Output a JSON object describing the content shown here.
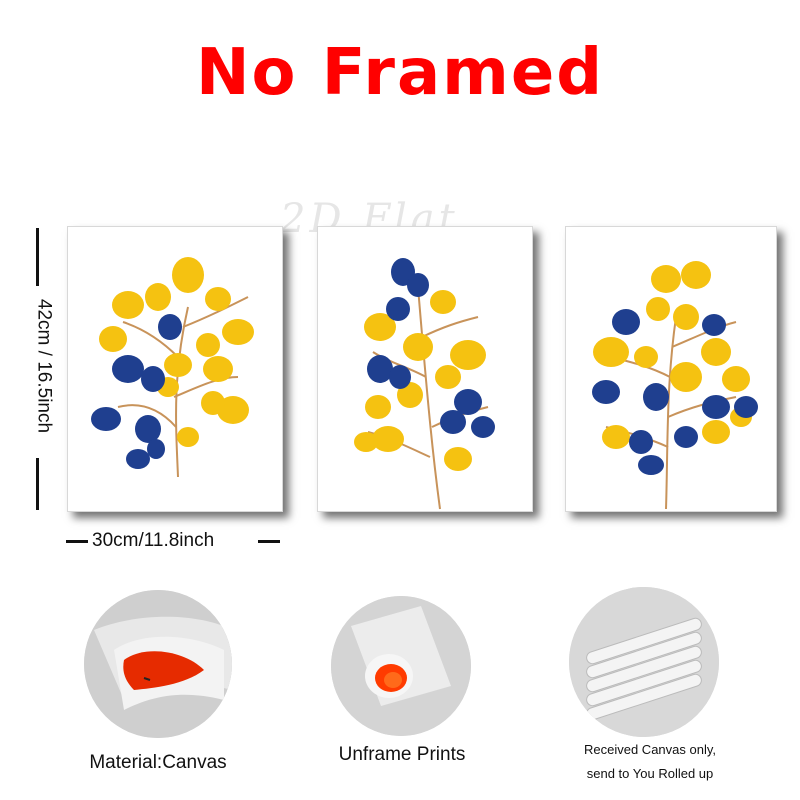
{
  "header": {
    "title": "No Framed"
  },
  "watermark": "2D Flat",
  "dimensions": {
    "height": "42cm / 16.5inch",
    "width": "30cm/11.8inch"
  },
  "colors": {
    "title": "#ff0000",
    "leaf_yellow": "#f5c211",
    "leaf_blue": "#1f3f8f",
    "stem": "#c8935a",
    "canvas_red": "#e62b00"
  },
  "details": [
    {
      "icon": "rolled-canvas-icon",
      "caption": "Material:Canvas"
    },
    {
      "icon": "canvas-roll-end-icon",
      "caption": "Unframe  Prints"
    },
    {
      "icon": "rolled-tubes-icon",
      "caption_line1": "Received Canvas only,",
      "caption_line2": "send to You Rolled up"
    }
  ]
}
